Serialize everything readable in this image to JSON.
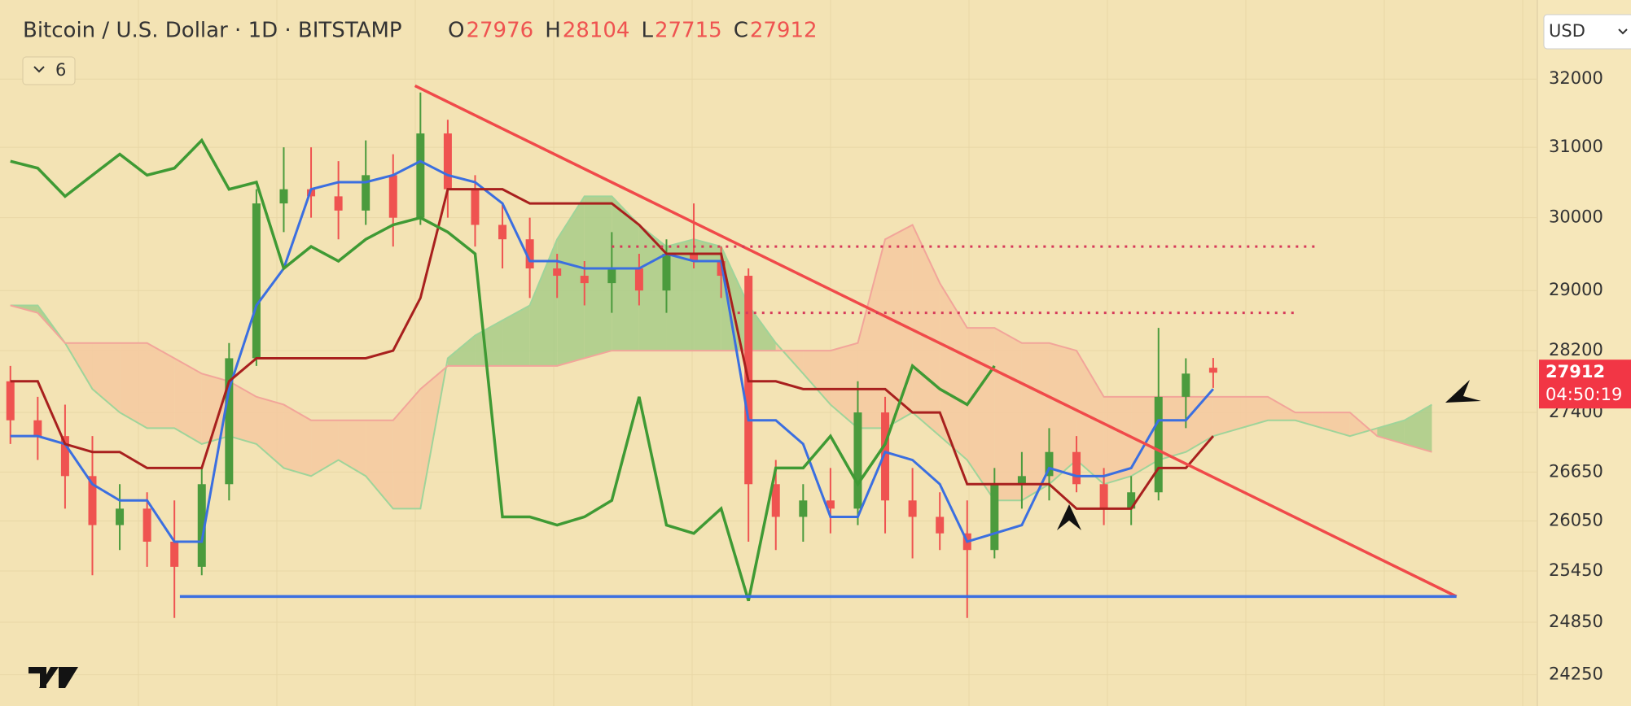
{
  "chart_data": {
    "type": "candlestick",
    "title": "Bitcoin / U.S. Dollar · 1D · BITSTAMP",
    "ohlc_labels": [
      "O",
      "H",
      "L",
      "C"
    ],
    "indicator_count": "6",
    "currency": "USD",
    "countdown": "04:50:19",
    "log_scale": true,
    "ylim": [
      23900,
      33200
    ],
    "yticks": [
      32000,
      31000,
      30000,
      29000,
      28200,
      27400,
      26650,
      26050,
      25450,
      24850,
      24250
    ],
    "up_color": "#4b9b3d",
    "down_color": "#ef5350",
    "candles": [
      [
        27800,
        28000,
        27000,
        27300
      ],
      [
        27300,
        27600,
        26800,
        27100
      ],
      [
        27100,
        27500,
        26200,
        26600
      ],
      [
        26600,
        27100,
        25400,
        26000
      ],
      [
        26000,
        26500,
        25700,
        26200
      ],
      [
        26200,
        26400,
        25500,
        25800
      ],
      [
        25800,
        26300,
        24900,
        25500
      ],
      [
        25500,
        26700,
        25400,
        26500
      ],
      [
        26500,
        28300,
        26300,
        28100
      ],
      [
        28100,
        30400,
        28000,
        30200
      ],
      [
        30200,
        31000,
        29800,
        30400
      ],
      [
        30400,
        31000,
        30000,
        30300
      ],
      [
        30300,
        30800,
        29700,
        30100
      ],
      [
        30100,
        31100,
        29900,
        30600
      ],
      [
        30600,
        30900,
        29600,
        30000
      ],
      [
        30000,
        31800,
        29900,
        31200
      ],
      [
        31200,
        31400,
        30000,
        30400
      ],
      [
        30400,
        30600,
        29600,
        29900
      ],
      [
        29900,
        30200,
        29300,
        29700
      ],
      [
        29700,
        30000,
        28900,
        29300
      ],
      [
        29300,
        29500,
        28900,
        29200
      ],
      [
        29200,
        29400,
        28800,
        29100
      ],
      [
        29100,
        29800,
        28700,
        29300
      ],
      [
        29300,
        29500,
        28800,
        29000
      ],
      [
        29000,
        29700,
        28700,
        29500
      ],
      [
        29500,
        30200,
        29300,
        29400
      ],
      [
        29400,
        29600,
        28900,
        29200
      ],
      [
        29200,
        29300,
        25800,
        26500
      ],
      [
        26500,
        26800,
        25700,
        26100
      ],
      [
        26100,
        26500,
        25800,
        26300
      ],
      [
        26300,
        26700,
        25900,
        26200
      ],
      [
        26200,
        27800,
        26000,
        27400
      ],
      [
        27400,
        27600,
        25900,
        26300
      ],
      [
        26300,
        26700,
        25600,
        26100
      ],
      [
        26100,
        26400,
        25700,
        25900
      ],
      [
        25900,
        26300,
        24900,
        25700
      ],
      [
        25700,
        26700,
        25600,
        26500
      ],
      [
        26500,
        26900,
        26200,
        26600
      ],
      [
        26600,
        27200,
        26300,
        26900
      ],
      [
        26900,
        27100,
        26400,
        26500
      ],
      [
        26500,
        26700,
        26000,
        26200
      ],
      [
        26200,
        26600,
        26000,
        26400
      ],
      [
        26400,
        28500,
        26300,
        27600
      ],
      [
        27600,
        28100,
        27200,
        27900
      ],
      [
        27976,
        28104,
        27715,
        27912
      ]
    ],
    "series": [
      {
        "name": "Conversion Line",
        "color": "#3b6fe0",
        "values": [
          27100,
          27100,
          27000,
          26500,
          26300,
          26300,
          25800,
          25800,
          27700,
          28800,
          29300,
          30400,
          30500,
          30500,
          30600,
          30800,
          30600,
          30500,
          30200,
          29400,
          29400,
          29300,
          29300,
          29300,
          29500,
          29400,
          29400,
          27300,
          27300,
          27000,
          26100,
          26100,
          26900,
          26800,
          26500,
          25800,
          25900,
          26000,
          26700,
          26600,
          26600,
          26700,
          27300,
          27300,
          27700
        ]
      },
      {
        "name": "Base Line",
        "color": "#a8201e",
        "values": [
          27800,
          27800,
          27000,
          26900,
          26900,
          26700,
          26700,
          26700,
          27800,
          28100,
          28100,
          28100,
          28100,
          28100,
          28200,
          28900,
          30400,
          30400,
          30400,
          30200,
          30200,
          30200,
          30200,
          29900,
          29500,
          29500,
          29500,
          27800,
          27800,
          27700,
          27700,
          27700,
          27700,
          27400,
          27400,
          26500,
          26500,
          26500,
          26500,
          26200,
          26200,
          26200,
          26700,
          26700,
          27100
        ]
      },
      {
        "name": "Lagging Span",
        "color": "#3f9a34",
        "values": [
          30800,
          30700,
          30300,
          30600,
          30900,
          30600,
          30700,
          31100,
          30400,
          30500,
          29300,
          29600,
          29400,
          29700,
          29900,
          30000,
          29800,
          29500,
          26100,
          26100,
          26000,
          26100,
          26300,
          27600,
          26000,
          25900,
          26200,
          25100,
          26700,
          26700,
          27100,
          26500,
          27000,
          28000,
          27700,
          27500,
          28000
        ]
      },
      {
        "name": "Leading Span A",
        "color": "#9fd49a",
        "values": [
          28800,
          28800,
          28300,
          27700,
          27400,
          27200,
          27200,
          27000,
          27100,
          27000,
          26700,
          26600,
          26800,
          26600,
          26200,
          26200,
          28100,
          28400,
          28600,
          28800,
          29700,
          30300,
          30300,
          29900,
          29600,
          29700,
          29600,
          28800,
          28300,
          27900,
          27500,
          27200,
          27200,
          27400,
          27100,
          26800,
          26300,
          26300,
          26500,
          26800,
          26500,
          26600,
          26800,
          26900,
          27100,
          27200,
          27300,
          27300,
          27200,
          27100,
          27200,
          27300,
          27500
        ]
      },
      {
        "name": "Leading Span B",
        "color": "#f2a59a",
        "values": [
          28800,
          28700,
          28300,
          28300,
          28300,
          28300,
          28100,
          27900,
          27800,
          27600,
          27500,
          27300,
          27300,
          27300,
          27300,
          27700,
          28000,
          28000,
          28000,
          28000,
          28000,
          28100,
          28200,
          28200,
          28200,
          28200,
          28200,
          28200,
          28200,
          28200,
          28200,
          28300,
          29700,
          29900,
          29100,
          28500,
          28500,
          28300,
          28300,
          28200,
          27600,
          27600,
          27600,
          27600,
          27600,
          27600,
          27600,
          27400,
          27400,
          27400,
          27100,
          27000,
          26900
        ]
      }
    ],
    "cloud_colors": {
      "up": "#a8cc88",
      "down": "#f5c9a0"
    },
    "drawings": [
      {
        "color": "#f04a4a",
        "style": "solid",
        "x": [
          14.8,
          52.9
        ],
        "y": [
          31900,
          25150
        ]
      },
      {
        "color": "#3b6fe0",
        "style": "solid",
        "x": [
          6.2,
          52.9
        ],
        "y": [
          25150,
          25150
        ]
      },
      {
        "color": "#d63a5a",
        "style": "dotted",
        "x": [
          22,
          47.9
        ],
        "y": [
          29600,
          29600
        ]
      },
      {
        "color": "#d63a5a",
        "style": "dotted",
        "x": [
          26.6,
          47
        ],
        "y": [
          28700,
          28700
        ]
      }
    ]
  }
}
